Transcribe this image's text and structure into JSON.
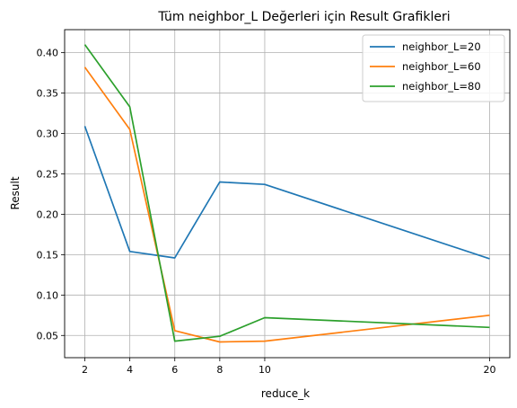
{
  "chart_data": {
    "type": "line",
    "title": "Tüm neighbor_L Değerleri için Result Grafikleri",
    "xlabel": "reduce_k",
    "ylabel": "Result",
    "x": [
      2,
      4,
      6,
      8,
      10,
      20
    ],
    "x_ticks": [
      "2",
      "4",
      "6",
      "8",
      "10",
      "20"
    ],
    "y_ticks": [
      "0.05",
      "0.10",
      "0.15",
      "0.20",
      "0.25",
      "0.30",
      "0.35",
      "0.40"
    ],
    "xlim": [
      1.1,
      20.9
    ],
    "ylim": [
      0.0225,
      0.4285
    ],
    "grid": true,
    "legend_position": "top-right",
    "series": [
      {
        "name": "neighbor_L=20",
        "color": "#1f77b4",
        "values": [
          0.309,
          0.154,
          0.146,
          0.24,
          0.237,
          0.145
        ]
      },
      {
        "name": "neighbor_L=60",
        "color": "#ff7f0e",
        "values": [
          0.382,
          0.305,
          0.056,
          0.042,
          0.043,
          0.075
        ]
      },
      {
        "name": "neighbor_L=80",
        "color": "#2ca02c",
        "values": [
          0.41,
          0.333,
          0.043,
          0.049,
          0.072,
          0.06
        ]
      }
    ]
  }
}
